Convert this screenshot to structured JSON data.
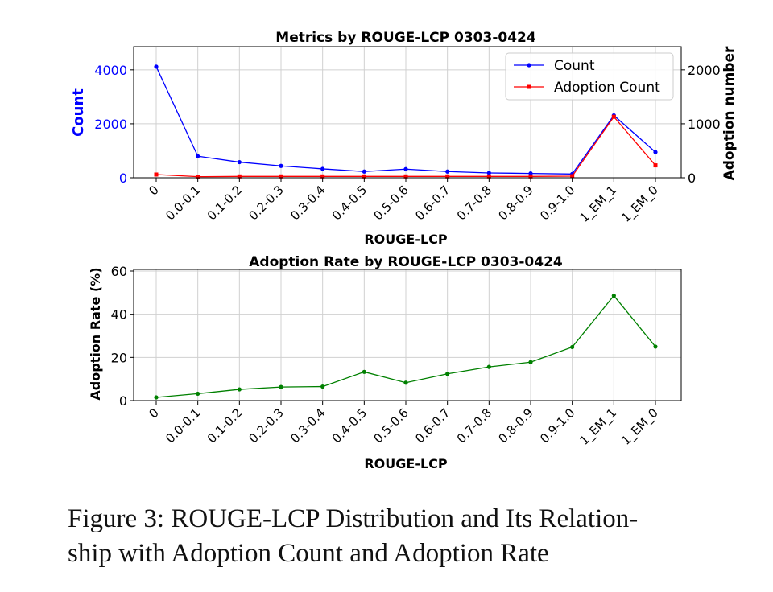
{
  "chart_data": [
    {
      "type": "line",
      "title": "Metrics by ROUGE-LCP 0303-0424",
      "xlabel": "ROUGE-LCP",
      "ylabel": "Count",
      "ylabel_right": "Adoption number",
      "categories": [
        "0",
        "0.0-0.1",
        "0.1-0.2",
        "0.2-0.3",
        "0.3-0.4",
        "0.4-0.5",
        "0.5-0.6",
        "0.6-0.7",
        "0.7-0.8",
        "0.8-0.9",
        "0.9-1.0",
        "1_EM_1",
        "1_EM_0"
      ],
      "ylim": [
        0,
        4800
      ],
      "ylim_right": [
        0,
        2400
      ],
      "yticks": [
        0,
        2000,
        4000
      ],
      "yticks_right": [
        0,
        1000,
        2000
      ],
      "grid": true,
      "legend_position": "top-right",
      "series": [
        {
          "name": "Count",
          "axis": "left",
          "color": "#0000ff",
          "values": [
            4120,
            800,
            580,
            440,
            330,
            230,
            320,
            230,
            180,
            160,
            140,
            2310,
            950
          ]
        },
        {
          "name": "Adoption Count",
          "axis": "right",
          "color": "#ff0000",
          "values": [
            60,
            20,
            25,
            25,
            25,
            25,
            25,
            25,
            25,
            25,
            30,
            1130,
            230
          ]
        }
      ]
    },
    {
      "type": "line",
      "title": "Adoption Rate by ROUGE-LCP 0303-0424",
      "xlabel": "ROUGE-LCP",
      "ylabel": "Adoption Rate (%)",
      "categories": [
        "0",
        "0.0-0.1",
        "0.1-0.2",
        "0.2-0.3",
        "0.3-0.4",
        "0.4-0.5",
        "0.5-0.6",
        "0.6-0.7",
        "0.7-0.8",
        "0.8-0.9",
        "0.9-1.0",
        "1_EM_1",
        "1_EM_0"
      ],
      "ylim": [
        0,
        60
      ],
      "yticks": [
        0,
        20,
        40,
        60
      ],
      "grid": true,
      "series": [
        {
          "color": "#008000",
          "values": [
            1.5,
            3.2,
            5.2,
            6.3,
            6.5,
            13.3,
            8.3,
            12.4,
            15.6,
            17.8,
            24.8,
            48.6,
            25.0
          ]
        }
      ]
    }
  ],
  "caption": {
    "line1": "Figure 3: ROUGE-LCP Distribution and Its Relation-",
    "line2": "ship with Adoption Count and Adoption Rate"
  }
}
